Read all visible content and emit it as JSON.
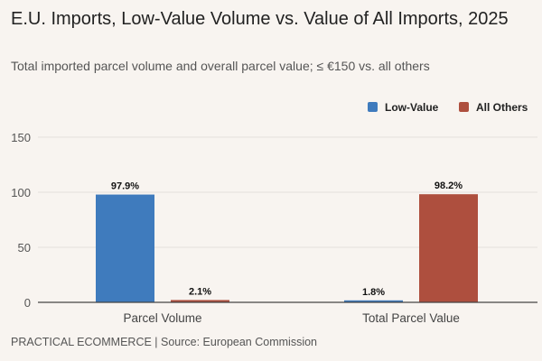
{
  "chart_data": {
    "type": "bar",
    "title": "E.U. Imports, Low-Value Volume vs. Value of All Imports, 2025",
    "subtitle": "Total imported parcel volume and overall parcel value; ≤ €150 vs. all others",
    "categories": [
      "Parcel Volume",
      "Total Parcel Value"
    ],
    "series": [
      {
        "name": "Low-Value",
        "color": "#3f7bbd",
        "values": [
          97.9,
          1.8
        ],
        "labels": [
          "97.9%",
          "1.8%"
        ]
      },
      {
        "name": "All Others",
        "color": "#ae4f3e",
        "values": [
          2.1,
          98.2
        ],
        "labels": [
          "2.1%",
          "98.2%"
        ]
      }
    ],
    "ylim": [
      0,
      150
    ],
    "yticks": [
      0,
      50,
      100,
      150
    ],
    "grid": true,
    "legend_placement": "top-right",
    "footer": "PRACTICAL ECOMMERCE | Source: European Commission"
  }
}
